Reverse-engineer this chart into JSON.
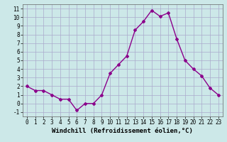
{
  "x": [
    0,
    1,
    2,
    3,
    4,
    5,
    6,
    7,
    8,
    9,
    10,
    11,
    12,
    13,
    14,
    15,
    16,
    17,
    18,
    19,
    20,
    21,
    22,
    23
  ],
  "y": [
    2.0,
    1.5,
    1.5,
    1.0,
    0.5,
    0.5,
    -0.8,
    0.0,
    0.0,
    1.0,
    3.5,
    4.5,
    5.5,
    8.5,
    9.5,
    10.8,
    10.1,
    10.5,
    7.5,
    5.0,
    4.0,
    3.2,
    1.8,
    1.0
  ],
  "line_color": "#8B008B",
  "marker": "D",
  "marker_size": 2,
  "bg_color": "#cce8e8",
  "grid_color": "#aaaacc",
  "xlabel": "Windchill (Refroidissement éolien,°C)",
  "xlabel_fontsize": 6.5,
  "xlim": [
    -0.5,
    23.5
  ],
  "ylim": [
    -1.5,
    11.5
  ],
  "yticks": [
    -1,
    0,
    1,
    2,
    3,
    4,
    5,
    6,
    7,
    8,
    9,
    10,
    11
  ],
  "xticks": [
    0,
    1,
    2,
    3,
    4,
    5,
    6,
    7,
    8,
    9,
    10,
    11,
    12,
    13,
    14,
    15,
    16,
    17,
    18,
    19,
    20,
    21,
    22,
    23
  ],
  "tick_fontsize": 5.5,
  "line_width": 1.0
}
